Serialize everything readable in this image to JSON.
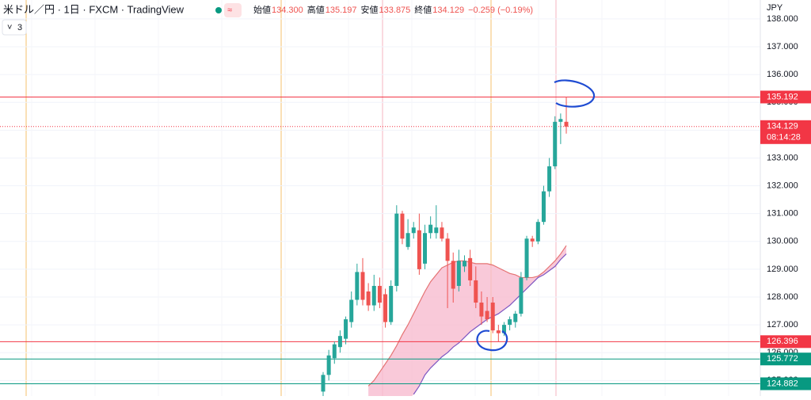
{
  "chart_data": {
    "type": "candlestick",
    "title": "米ドル／円 · 1日 · FXCM · TradingView",
    "indicator_count": "3",
    "legend": [
      {
        "label": "始値",
        "value": "134.300"
      },
      {
        "label": "高値",
        "value": "135.197"
      },
      {
        "label": "安値",
        "value": "133.875"
      },
      {
        "label": "終値",
        "value": "134.129"
      }
    ],
    "change": "−0.259 (−0.19%)",
    "currency": "JPY",
    "countdown": "08:14:28",
    "ylim": [
      124.44,
      138.68
    ],
    "yticks": [
      {
        "value": 138,
        "label": "138.000"
      },
      {
        "value": 137,
        "label": "137.000"
      },
      {
        "value": 136,
        "label": "136.000"
      },
      {
        "value": 135,
        "label": "135.000"
      },
      {
        "value": 134,
        "label": "134.000"
      },
      {
        "value": 133,
        "label": "133.000"
      },
      {
        "value": 132,
        "label": "132.000"
      },
      {
        "value": 131,
        "label": "131.000"
      },
      {
        "value": 130,
        "label": "130.000"
      },
      {
        "value": 129,
        "label": "129.000"
      },
      {
        "value": 128,
        "label": "128.000"
      },
      {
        "value": 127,
        "label": "127.000"
      },
      {
        "value": 126,
        "label": "126.000"
      },
      {
        "value": 125,
        "label": "125.000"
      }
    ],
    "up_color": "#26a69a",
    "down_color": "#ef5350",
    "open": [
      124.6,
      125.2,
      125.8,
      126.2,
      126.5,
      127.1,
      127.9,
      128.9,
      128.2,
      127.7,
      128.4,
      128.1,
      127.1,
      128.4,
      131.0,
      129.8,
      130.3,
      130.4,
      129.2,
      130.3,
      130.3,
      130.5,
      130.1,
      129.3,
      128.4,
      129.1,
      129.4,
      128.6,
      127.8,
      127.5,
      127.8,
      126.8,
      126.7,
      127.0,
      127.1,
      127.4,
      128.7,
      130.1,
      130.0,
      130.7,
      131.8,
      132.7,
      134.3,
      134.3
    ],
    "high": [
      125.3,
      126.1,
      126.4,
      126.8,
      127.3,
      128.2,
      129.2,
      129.4,
      128.5,
      128.8,
      128.7,
      128.3,
      128.6,
      131.3,
      131.1,
      130.8,
      130.7,
      131.0,
      130.6,
      130.9,
      131.3,
      130.7,
      130.3,
      129.6,
      129.7,
      129.5,
      129.7,
      129.1,
      128.2,
      128.0,
      128.0,
      127.0,
      127.1,
      127.3,
      127.5,
      128.9,
      130.2,
      130.2,
      130.8,
      132.0,
      133.0,
      134.5,
      134.6,
      135.197
    ],
    "low": [
      124.3,
      125.0,
      125.6,
      126.0,
      126.3,
      126.9,
      127.7,
      127.7,
      127.5,
      127.5,
      127.6,
      126.9,
      127.0,
      128.2,
      129.9,
      129.7,
      130.1,
      128.8,
      129.0,
      130.1,
      130.1,
      130.0,
      127.6,
      127.8,
      128.2,
      128.9,
      128.4,
      127.6,
      127.0,
      127.1,
      126.7,
      126.4,
      126.6,
      126.8,
      126.9,
      127.3,
      128.6,
      129.8,
      129.9,
      130.6,
      131.6,
      132.6,
      133.5,
      133.875
    ],
    "close": [
      125.2,
      125.9,
      126.3,
      126.6,
      127.2,
      127.9,
      128.9,
      127.9,
      127.7,
      128.4,
      127.8,
      127.1,
      128.4,
      131.0,
      130.1,
      130.3,
      130.5,
      129.0,
      130.3,
      130.6,
      130.5,
      130.1,
      129.3,
      128.3,
      129.3,
      129.3,
      128.6,
      127.8,
      127.3,
      127.2,
      126.8,
      126.7,
      127.0,
      127.2,
      127.4,
      128.7,
      130.1,
      130.0,
      130.7,
      131.8,
      132.7,
      134.3,
      134.4,
      134.129
    ],
    "band": {
      "upper_color": "#e57373",
      "lower_color": "#7e57c2",
      "fill": "#f8bbd0",
      "upper": [
        null,
        null,
        null,
        null,
        null,
        null,
        null,
        null,
        124.8,
        125.0,
        125.3,
        125.6,
        125.9,
        126.25,
        126.65,
        127.0,
        127.4,
        127.8,
        128.2,
        128.55,
        128.8,
        129.05,
        129.15,
        129.25,
        129.3,
        129.3,
        129.25,
        129.2,
        129.2,
        129.2,
        129.15,
        129.05,
        128.95,
        128.85,
        128.8,
        128.7,
        128.7,
        128.7,
        128.75,
        128.9,
        129.1,
        129.3,
        129.55,
        129.85
      ],
      "lower": [
        null,
        null,
        null,
        null,
        null,
        null,
        null,
        null,
        null,
        null,
        null,
        null,
        null,
        null,
        null,
        null,
        124.5,
        124.8,
        125.2,
        125.45,
        125.65,
        125.85,
        126.0,
        126.2,
        126.35,
        126.55,
        126.75,
        126.9,
        127.05,
        127.2,
        127.3,
        127.4,
        127.55,
        127.7,
        127.9,
        128.1,
        128.3,
        128.5,
        128.7,
        128.8,
        128.95,
        129.1,
        129.35,
        129.55
      ]
    },
    "levels": [
      {
        "value": 135.192,
        "color": "#f23645"
      },
      {
        "value": 126.396,
        "color": "#f23645"
      },
      {
        "value": 125.772,
        "color": "#089981"
      },
      {
        "value": 124.882,
        "color": "#089981"
      }
    ],
    "last_price": {
      "value": 134.129,
      "color": "#f23645"
    }
  }
}
